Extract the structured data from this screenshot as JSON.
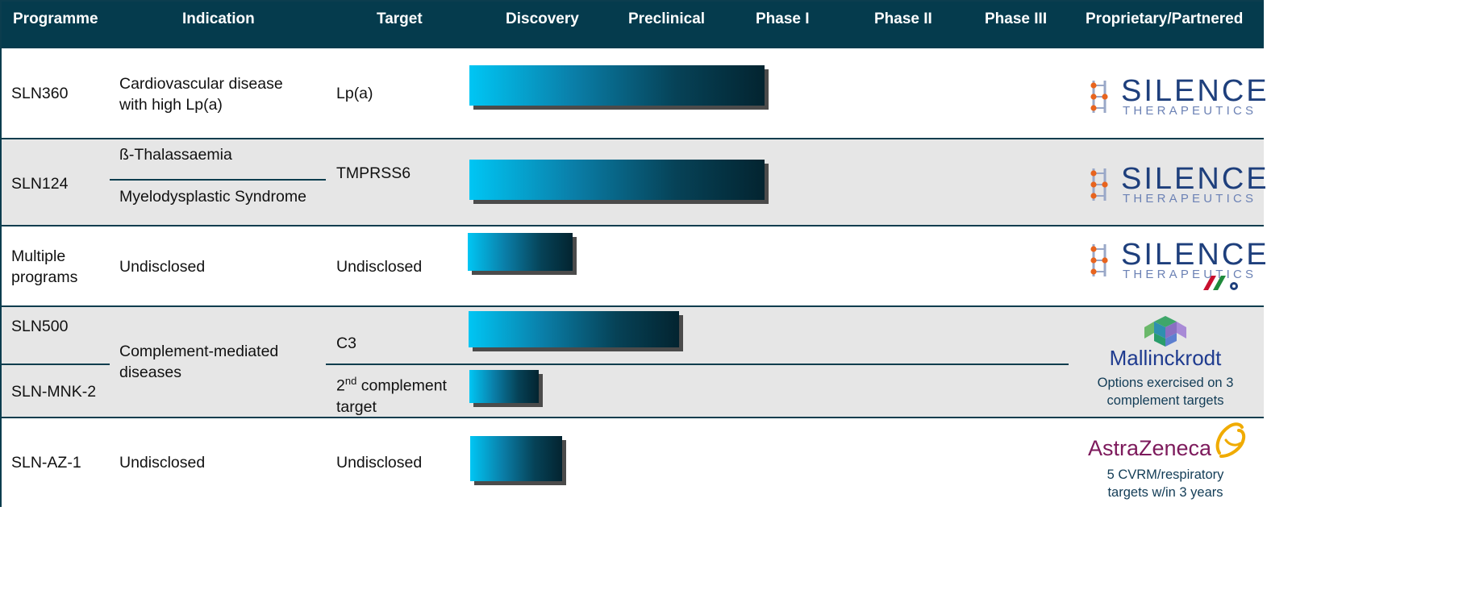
{
  "columns": {
    "programme": "Programme",
    "indication": "Indication",
    "target": "Target",
    "discovery": "Discovery",
    "preclinical": "Preclinical",
    "phase1": "Phase I",
    "phase2": "Phase II",
    "phase3": "Phase III",
    "partner": "Proprietary/Partnered"
  },
  "rows": [
    {
      "programme": "SLN360",
      "indication_line1": "Cardiovascular disease",
      "indication_line2": "with high Lp(a)",
      "target": "Lp(a)",
      "stage": "Phase I"
    },
    {
      "programme": "SLN124",
      "indication_a": "ß-Thalassaemia",
      "indication_b": "Myelodysplastic Syndrome",
      "target": "TMPRSS6",
      "stage": "Phase I"
    },
    {
      "programme_line1": "Multiple",
      "programme_line2": "programs",
      "indication": "Undisclosed",
      "target": "Undisclosed",
      "stage": "Discovery"
    },
    {
      "programme_a": "SLN500",
      "programme_b": "SLN-MNK-2",
      "indication_line1": "Complement-mediated",
      "indication_line2": "diseases",
      "target_a": "C3",
      "target_b_main": "2",
      "target_b_sup": "nd",
      "target_b_rest": " complement",
      "target_b_line2": "target",
      "stage_a": "Preclinical",
      "stage_b": "Discovery"
    },
    {
      "programme": "SLN-AZ-1",
      "indication": "Undisclosed",
      "target": "Undisclosed",
      "stage": "Discovery"
    }
  ],
  "partners": {
    "silence_word": "SILENCE",
    "silence_sub": "THERAPEUTICS",
    "mallinckrodt_word": "Mallinckrodt",
    "mallinckrodt_note_line1": "Options exercised on 3",
    "mallinckrodt_note_line2": "complement targets",
    "astrazeneca_word": "AstraZeneca",
    "astrazeneca_note_line1": "5 CVRM/respiratory",
    "astrazeneca_note_line2": "targets w/in 3 years"
  },
  "colors": {
    "header_bg": "#053b4d",
    "row_shade": "#e6e6e6",
    "bar_start": "#00c6f4",
    "bar_end": "#032430",
    "silence_blue": "#1e3f7c",
    "silence_orange": "#e8641e",
    "mallinckrodt_blue": "#1f3b8f",
    "astrazeneca_purple": "#7d1a5c",
    "astrazeneca_gold": "#f0ab00"
  }
}
